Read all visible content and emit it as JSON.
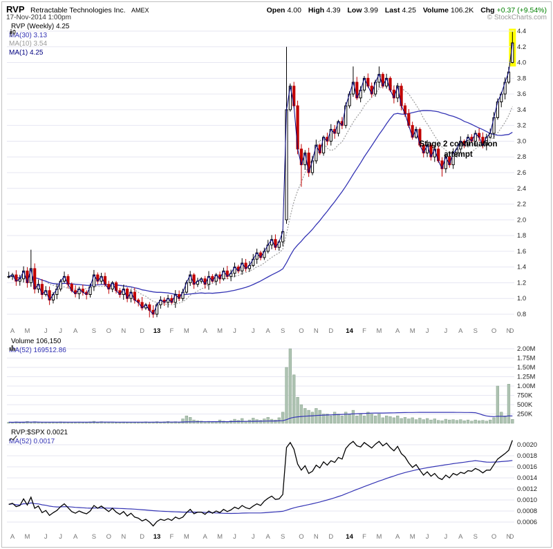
{
  "header": {
    "symbol": "RVP",
    "company": "Retractable Technologies Inc.",
    "exchange": "AMEX",
    "datetime": "17-Nov-2014 1:00pm",
    "copyright": "© StockCharts.com",
    "quote": {
      "open_label": "Open",
      "open": "4.00",
      "high_label": "High",
      "high": "4.39",
      "low_label": "Low",
      "low": "3.99",
      "last_label": "Last",
      "last": "4.25",
      "volume_label": "Volume",
      "volume": "106.2K",
      "chg_label": "Chg",
      "chg": "+0.37 (+9.54%)"
    }
  },
  "colors": {
    "grid": "#e6e6f2",
    "up_candle": "#000000",
    "down_candle": "#c00000",
    "ma30": "#3333b4",
    "ma10": "#9a9a9a",
    "ma1": "#000080",
    "ma_blue": "#3333b4",
    "volume_bar": "#aec3b2",
    "volume_bar_border": "#87a28c",
    "ratio_line": "#000000",
    "highlight": "#ffff00",
    "chg_positive": "#008000"
  },
  "icons": {
    "price_legend": "candlestick-icon",
    "volume_legend": "bar-chart-icon",
    "ratio_legend": "line-chart-icon"
  },
  "main_panel": {
    "legend_title": "RVP (Weekly) 4.25",
    "ma30_label": "MA(30) 3.13",
    "ma10_label": "MA(10) 3.54",
    "ma1_label": "MA(1) 4.25",
    "annotation": "Stage 2 continuation\nattempt",
    "y_ticks": [
      "4.4",
      "4.2",
      "4.0",
      "3.8",
      "3.6",
      "3.4",
      "3.2",
      "3.0",
      "2.8",
      "2.6",
      "2.4",
      "2.2",
      "2.0",
      "1.8",
      "1.6",
      "1.4",
      "1.2",
      "1.0",
      "0.8"
    ]
  },
  "volume_panel": {
    "legend_title": "Volume 106,150",
    "ma_label": "MA(52) 169512.86",
    "y_ticks": [
      "2.00M",
      "1.75M",
      "1.50M",
      "1.25M",
      "1.00M",
      "750K",
      "500K",
      "250K"
    ]
  },
  "ratio_panel": {
    "legend_title": "RVP:$SPX 0.0021",
    "ma_label": "MA(52) 0.0017",
    "y_ticks": [
      "0.0020",
      "0.0018",
      "0.0016",
      "0.0014",
      "0.0012",
      "0.0010",
      "0.0008",
      "0.0006"
    ]
  },
  "x_axis": {
    "months": [
      {
        "label": "A",
        "week": 0
      },
      {
        "label": "M",
        "week": 4
      },
      {
        "label": "J",
        "week": 9
      },
      {
        "label": "J",
        "week": 13
      },
      {
        "label": "A",
        "week": 17
      },
      {
        "label": "S",
        "week": 22
      },
      {
        "label": "O",
        "week": 26
      },
      {
        "label": "N",
        "week": 30
      },
      {
        "label": "D",
        "week": 35
      },
      {
        "label": "13",
        "week": 39
      },
      {
        "label": "F",
        "week": 43
      },
      {
        "label": "M",
        "week": 47
      },
      {
        "label": "A",
        "week": 52
      },
      {
        "label": "M",
        "week": 56
      },
      {
        "label": "J",
        "week": 60
      },
      {
        "label": "J",
        "week": 65
      },
      {
        "label": "A",
        "week": 69
      },
      {
        "label": "S",
        "week": 73
      },
      {
        "label": "O",
        "week": 78
      },
      {
        "label": "N",
        "week": 82
      },
      {
        "label": "D",
        "week": 86
      },
      {
        "label": "14",
        "week": 91
      },
      {
        "label": "F",
        "week": 95
      },
      {
        "label": "M",
        "week": 99
      },
      {
        "label": "A",
        "week": 104
      },
      {
        "label": "M",
        "week": 108
      },
      {
        "label": "J",
        "week": 112
      },
      {
        "label": "J",
        "week": 117
      },
      {
        "label": "A",
        "week": 121
      },
      {
        "label": "S",
        "week": 125
      },
      {
        "label": "O",
        "week": 130
      },
      {
        "label": "N",
        "week": 134
      },
      {
        "label": "D",
        "week": 137
      }
    ]
  },
  "chart_data": [
    {
      "type": "candlestick",
      "title": "RVP (Weekly)",
      "timeframe": "weekly",
      "x_start": "Apr-2012",
      "x_end": "Nov-2014",
      "ylim": [
        0.7,
        4.5
      ],
      "overlays": [
        "MA(30)",
        "MA(10)",
        "MA(1)"
      ],
      "closes": [
        1.28,
        1.3,
        1.22,
        1.25,
        1.35,
        1.2,
        1.38,
        1.12,
        1.18,
        1.05,
        1.1,
        0.98,
        1.05,
        1.12,
        1.22,
        1.28,
        1.18,
        1.1,
        1.06,
        1.12,
        1.08,
        1.05,
        1.15,
        1.3,
        1.22,
        1.28,
        1.18,
        1.12,
        1.2,
        1.1,
        1.05,
        1.12,
        1.0,
        1.08,
        0.98,
        0.95,
        0.88,
        0.92,
        0.85,
        0.8,
        0.92,
        0.98,
        0.95,
        1.0,
        0.95,
        1.05,
        1.0,
        1.08,
        1.2,
        1.3,
        1.18,
        1.22,
        1.25,
        1.18,
        1.28,
        1.22,
        1.3,
        1.25,
        1.35,
        1.28,
        1.32,
        1.4,
        1.35,
        1.45,
        1.38,
        1.42,
        1.5,
        1.58,
        1.52,
        1.6,
        1.68,
        1.75,
        1.65,
        1.72,
        1.85,
        3.4,
        3.7,
        3.45,
        2.9,
        2.7,
        2.85,
        2.6,
        2.75,
        2.95,
        2.85,
        3.05,
        3.0,
        3.15,
        3.1,
        3.25,
        3.2,
        3.45,
        3.6,
        3.75,
        3.55,
        3.65,
        3.8,
        3.7,
        3.6,
        3.75,
        3.85,
        3.7,
        3.8,
        3.65,
        3.55,
        3.7,
        3.45,
        3.35,
        3.2,
        3.05,
        3.15,
        2.95,
        2.85,
        2.95,
        2.8,
        2.9,
        2.75,
        2.65,
        2.8,
        2.7,
        2.85,
        2.9,
        3.0,
        2.95,
        3.05,
        3.0,
        3.1,
        3.05,
        2.95,
        3.05,
        3.1,
        3.3,
        3.5,
        3.6,
        3.75,
        3.88,
        4.25
      ],
      "ohlc_overrides": [
        {
          "i": 6,
          "h": 1.62
        },
        {
          "i": 38,
          "l": 0.76
        },
        {
          "i": 75,
          "o": 2.0,
          "h": 4.2,
          "l": 1.95
        },
        {
          "i": 79,
          "l": 2.42
        },
        {
          "i": 93,
          "h": 3.95
        },
        {
          "i": 100,
          "h": 3.95
        },
        {
          "i": 117,
          "l": 2.55
        },
        {
          "i": 136,
          "o": 4.0,
          "h": 4.39,
          "l": 3.99
        }
      ]
    },
    {
      "type": "bar",
      "title": "Volume",
      "ylim_k": [
        0,
        2100
      ],
      "ma_period": 52,
      "values_k": [
        30,
        25,
        40,
        20,
        35,
        50,
        30,
        45,
        25,
        20,
        30,
        25,
        35,
        30,
        40,
        35,
        25,
        30,
        25,
        35,
        30,
        20,
        40,
        55,
        35,
        45,
        30,
        25,
        35,
        20,
        25,
        35,
        30,
        30,
        25,
        30,
        25,
        40,
        30,
        35,
        45,
        30,
        40,
        50,
        35,
        45,
        30,
        120,
        200,
        160,
        90,
        70,
        60,
        45,
        55,
        40,
        50,
        90,
        60,
        45,
        70,
        110,
        80,
        130,
        60,
        90,
        140,
        100,
        80,
        120,
        160,
        110,
        90,
        150,
        300,
        1500,
        2000,
        1300,
        700,
        500,
        400,
        350,
        300,
        400,
        350,
        250,
        250,
        200,
        300,
        250,
        200,
        300,
        250,
        350,
        200,
        250,
        200,
        300,
        250,
        200,
        250,
        150,
        200,
        180,
        150,
        200,
        130,
        160,
        120,
        150,
        100,
        140,
        100,
        130,
        90,
        120,
        80,
        70,
        110,
        90,
        100,
        80,
        100,
        70,
        90,
        60,
        90,
        70,
        80,
        60,
        90,
        150,
        1000,
        300,
        200,
        1050,
        106
      ]
    },
    {
      "type": "line",
      "title": "RVP:$SPX",
      "ylim_x10000": [
        5.5,
        21.5
      ],
      "ma_period": 52,
      "values_x10000": [
        9.2,
        9.4,
        8.8,
        9.0,
        10.2,
        9.1,
        10.5,
        8.5,
        8.9,
        7.7,
        8.1,
        7.2,
        7.7,
        8.1,
        8.8,
        9.3,
        8.6,
        7.9,
        7.6,
        8.0,
        7.7,
        7.5,
        8.0,
        9.0,
        8.5,
        8.9,
        8.4,
        7.9,
        8.5,
        7.8,
        7.4,
        7.9,
        7.1,
        7.6,
        6.9,
        6.7,
        6.2,
        6.5,
        6.0,
        5.3,
        6.1,
        6.5,
        6.3,
        6.6,
        6.3,
        6.9,
        6.6,
        6.9,
        7.7,
        8.3,
        7.5,
        7.8,
        7.8,
        7.4,
        8.0,
        7.6,
        8.0,
        7.7,
        8.3,
        7.9,
        8.2,
        8.7,
        8.4,
        9.0,
        8.6,
        8.4,
        8.9,
        9.3,
        9.0,
        9.8,
        10.3,
        10.7,
        10.1,
        10.2,
        11.0,
        19.5,
        20.4,
        19.2,
        16.5,
        15.4,
        16.2,
        14.8,
        15.2,
        16.3,
        15.8,
        16.9,
        16.3,
        17.1,
        16.8,
        17.7,
        17.4,
        19.3,
        20.1,
        20.6,
        19.8,
        19.6,
        20.4,
        19.9,
        19.4,
        20.1,
        20.6,
        19.8,
        20.3,
        19.5,
        18.9,
        19.7,
        18.4,
        17.8,
        16.7,
        15.9,
        16.4,
        15.4,
        14.5,
        15.1,
        14.3,
        14.8,
        14.0,
        13.7,
        14.5,
        14.0,
        14.8,
        14.5,
        15.0,
        14.8,
        15.3,
        15.2,
        15.7,
        15.4,
        14.9,
        15.4,
        15.4,
        16.4,
        17.4,
        17.9,
        18.4,
        19.0,
        20.8
      ]
    }
  ]
}
